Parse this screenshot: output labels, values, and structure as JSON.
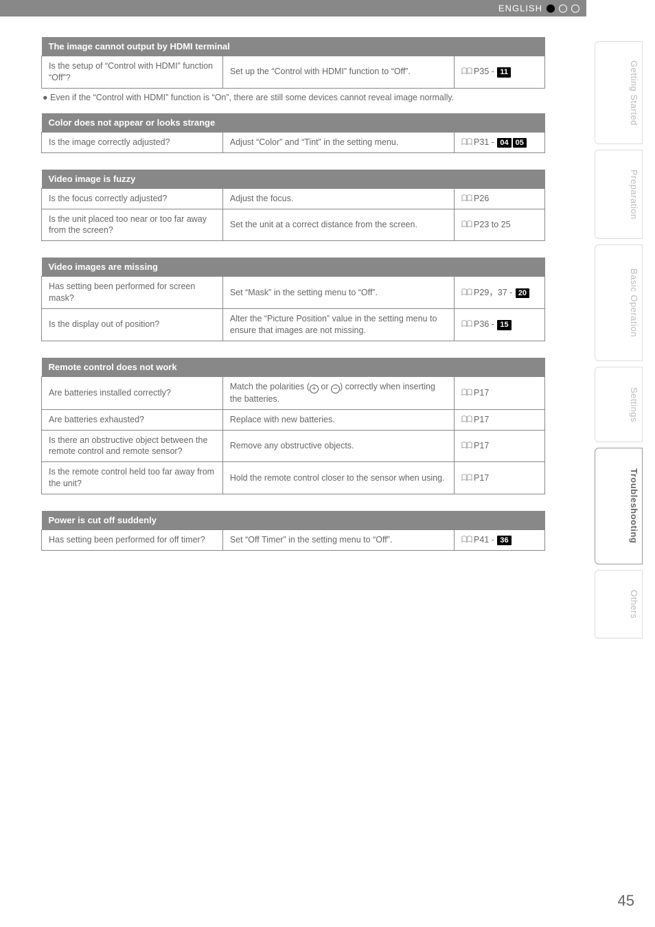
{
  "header": {
    "language_label": "ENGLISH"
  },
  "side_tabs": [
    {
      "label": "Getting Started",
      "active": false
    },
    {
      "label": "Preparation",
      "active": false
    },
    {
      "label": "Basic Operation",
      "active": false
    },
    {
      "label": "Settings",
      "active": false
    },
    {
      "label": "Troubleshooting",
      "active": true
    },
    {
      "label": "Others",
      "active": false
    }
  ],
  "sections": [
    {
      "title": "The image cannot output by HDMI terminal",
      "rows": [
        {
          "q": "Is the setup of “Control with HDMI” function “Off”?",
          "a": "Set up the “Control with HDMI” function to “Off”.",
          "ref_prefix": "P35 - ",
          "ref_badges": [
            "11"
          ]
        }
      ],
      "note": "Even if the “Control with HDMI” function is “On”, there are still some devices cannot reveal image normally."
    },
    {
      "title": "Color does not appear or looks strange",
      "rows": [
        {
          "q": "Is the image correctly adjusted?",
          "a": "Adjust “Color” and “Tint” in the setting menu.",
          "ref_prefix": "P31 - ",
          "ref_badges": [
            "04",
            "05"
          ]
        }
      ]
    },
    {
      "title": "Video image is fuzzy",
      "rows": [
        {
          "q": "Is the focus correctly adjusted?",
          "a": "Adjust the focus.",
          "ref_prefix": "P26",
          "ref_badges": []
        },
        {
          "q": "Is the unit placed too near or too far away from the screen?",
          "a": "Set the unit at a correct distance from the screen.",
          "ref_prefix": "P23 to 25",
          "ref_badges": []
        }
      ]
    },
    {
      "title": "Video images are missing",
      "rows": [
        {
          "q": "Has setting been performed for screen mask?",
          "a": "Set “Mask” in the setting menu to “Off”.",
          "ref_prefix": "P29，37 - ",
          "ref_badges": [
            "20"
          ]
        },
        {
          "q": "Is the display out of position?",
          "a": "Alter the “Picture Position” value in the setting menu to ensure that images are not missing.",
          "ref_prefix": "P36 - ",
          "ref_badges": [
            "15"
          ]
        }
      ]
    },
    {
      "title": "Remote control does not work",
      "rows": [
        {
          "q": "Are batteries installed correctly?",
          "a_html": true,
          "a": "Match the polarities (<span class='polarity'>+</span> or <span class='polarity'>−</span>) correctly when inserting the batteries.",
          "ref_prefix": "P17",
          "ref_badges": []
        },
        {
          "q": "Are batteries exhausted?",
          "a": "Replace with new batteries.",
          "ref_prefix": "P17",
          "ref_badges": []
        },
        {
          "q": "Is there an obstructive object between the remote control and remote sensor?",
          "a": "Remove any obstructive objects.",
          "ref_prefix": "P17",
          "ref_badges": []
        },
        {
          "q": "Is the remote control held too far away from the unit?",
          "a": "Hold the remote control closer to the sensor when using.",
          "ref_prefix": "P17",
          "ref_badges": []
        }
      ]
    },
    {
      "title": "Power is cut off suddenly",
      "rows": [
        {
          "q": "Has setting been performed for off timer?",
          "a": "Set “Off Timer” in the setting menu to “Off”.",
          "ref_prefix": "P41 - ",
          "ref_badges": [
            "36"
          ]
        }
      ]
    }
  ],
  "page_number": "45",
  "colors": {
    "header_bg": "#888888",
    "text": "#666666",
    "badge_bg": "#000000",
    "badge_fg": "#ffffff"
  }
}
